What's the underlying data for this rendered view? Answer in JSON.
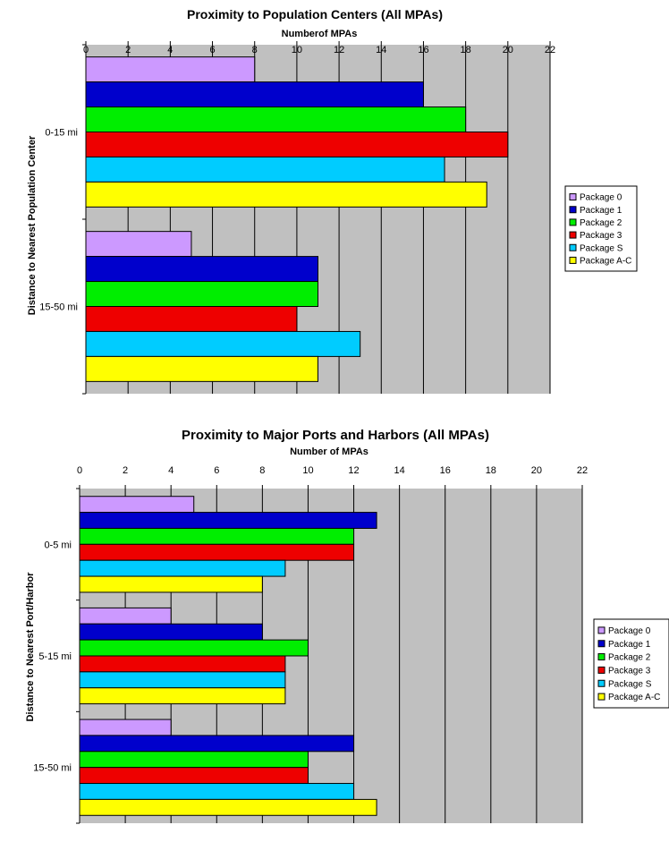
{
  "chart_data": [
    {
      "type": "bar",
      "orientation": "horizontal",
      "title": "Proximity to Population Centers (All MPAs)",
      "xlabel": "Numberof MPAs",
      "ylabel": "Distance to Nearest Population Center",
      "xlim": [
        0,
        22
      ],
      "xticks": [
        "0",
        "2",
        "4",
        "6",
        "8",
        "10",
        "12",
        "14",
        "16",
        "18",
        "20",
        "22"
      ],
      "categories": [
        "0-15 mi",
        "15-50 mi"
      ],
      "series": [
        {
          "name": "Package 0",
          "color": "#cc99ff",
          "values": [
            8,
            5
          ]
        },
        {
          "name": "Package 1",
          "color": "#0000cc",
          "values": [
            16,
            11
          ]
        },
        {
          "name": "Package 2",
          "color": "#00ee00",
          "values": [
            18,
            11
          ]
        },
        {
          "name": "Package 3",
          "color": "#ee0000",
          "values": [
            20,
            10
          ]
        },
        {
          "name": "Package S",
          "color": "#00ccff",
          "values": [
            17,
            13
          ]
        },
        {
          "name": "Package A-C",
          "color": "#ffff00",
          "values": [
            19,
            11
          ]
        }
      ],
      "grid": true,
      "legend": "right"
    },
    {
      "type": "bar",
      "orientation": "horizontal",
      "title": "Proximity to Major Ports and Harbors (All MPAs)",
      "xlabel": "Number of MPAs",
      "ylabel": "Distance to Nearest Port/Harbor",
      "xlim": [
        0,
        22
      ],
      "xticks": [
        "0",
        "2",
        "4",
        "6",
        "8",
        "10",
        "12",
        "14",
        "16",
        "18",
        "20",
        "22"
      ],
      "categories": [
        "0-5 mi",
        "5-15 mi",
        "15-50 mi"
      ],
      "series": [
        {
          "name": "Package 0",
          "color": "#cc99ff",
          "values": [
            5,
            4,
            4
          ]
        },
        {
          "name": "Package 1",
          "color": "#0000cc",
          "values": [
            13,
            8,
            12
          ]
        },
        {
          "name": "Package 2",
          "color": "#00ee00",
          "values": [
            12,
            10,
            10
          ]
        },
        {
          "name": "Package 3",
          "color": "#ee0000",
          "values": [
            12,
            9,
            10
          ]
        },
        {
          "name": "Package S",
          "color": "#00ccff",
          "values": [
            9,
            9,
            12
          ]
        },
        {
          "name": "Package A-C",
          "color": "#ffff00",
          "values": [
            8,
            9,
            13
          ]
        }
      ],
      "grid": true,
      "legend": "right"
    }
  ]
}
